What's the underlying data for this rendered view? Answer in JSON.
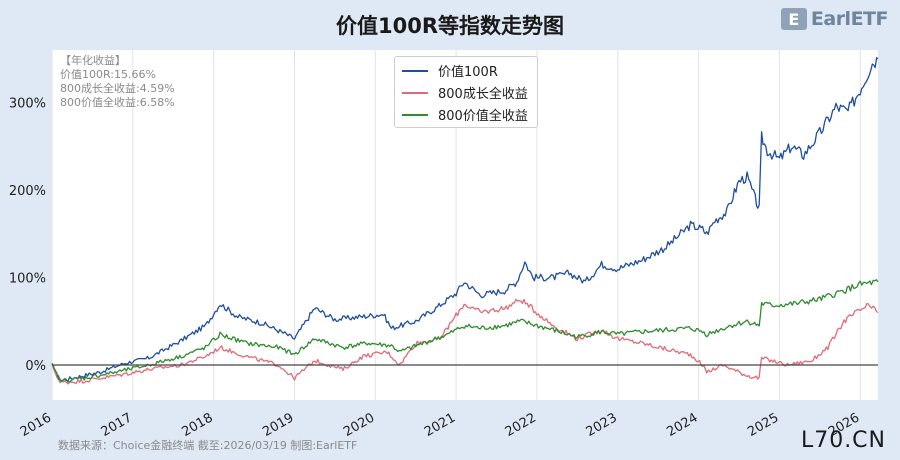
{
  "title": "价值100R等指数走势图",
  "logo": {
    "mark": "E",
    "text": "EarlETF"
  },
  "annualized": {
    "heading": "【年化收益】",
    "lines": [
      "价值100R:15.66%",
      "800成长全收益:4.59%",
      "800价值全收益:6.58%"
    ]
  },
  "source": "数据来源：Choice金融终端 截至:2026/03/19 制图:EarlETF",
  "watermark": "L70.CN",
  "colors": {
    "value100r": "#1f4e9c",
    "growth800": "#e06b78",
    "value800": "#2e8b2e",
    "zero_line": "#444444",
    "grid": "#e3e3e3"
  },
  "chart_data": {
    "type": "line",
    "title": "价值100R等指数走势图",
    "xlabel": "",
    "ylabel": "",
    "x_ticks": [
      "2016",
      "2017",
      "2018",
      "2019",
      "2020",
      "2021",
      "2022",
      "2023",
      "2024",
      "2025",
      "2026"
    ],
    "y_ticks": [
      "0%",
      "100%",
      "200%",
      "300%"
    ],
    "xlim": [
      2016.0,
      2026.22
    ],
    "ylim": [
      -40,
      360
    ],
    "grid": "vertical",
    "legend_position": "top-center",
    "series": [
      {
        "name": "价值100R",
        "color": "#1f4e9c",
        "points": [
          [
            2016.0,
            0
          ],
          [
            2016.1,
            -18
          ],
          [
            2016.3,
            -14
          ],
          [
            2016.6,
            -8
          ],
          [
            2016.9,
            2
          ],
          [
            2017.2,
            8
          ],
          [
            2017.6,
            28
          ],
          [
            2017.9,
            45
          ],
          [
            2018.08,
            70
          ],
          [
            2018.3,
            55
          ],
          [
            2018.6,
            48
          ],
          [
            2018.9,
            35
          ],
          [
            2019.0,
            30
          ],
          [
            2019.25,
            65
          ],
          [
            2019.5,
            52
          ],
          [
            2019.8,
            55
          ],
          [
            2020.1,
            58
          ],
          [
            2020.2,
            42
          ],
          [
            2020.5,
            50
          ],
          [
            2020.75,
            65
          ],
          [
            2021.0,
            82
          ],
          [
            2021.1,
            95
          ],
          [
            2021.3,
            80
          ],
          [
            2021.6,
            85
          ],
          [
            2021.75,
            95
          ],
          [
            2021.85,
            118
          ],
          [
            2021.95,
            100
          ],
          [
            2022.2,
            100
          ],
          [
            2022.4,
            105
          ],
          [
            2022.6,
            95
          ],
          [
            2022.8,
            115
          ],
          [
            2023.0,
            110
          ],
          [
            2023.3,
            120
          ],
          [
            2023.6,
            135
          ],
          [
            2023.9,
            160
          ],
          [
            2024.05,
            155
          ],
          [
            2024.1,
            150
          ],
          [
            2024.2,
            165
          ],
          [
            2024.35,
            175
          ],
          [
            2024.5,
            210
          ],
          [
            2024.6,
            215
          ],
          [
            2024.7,
            190
          ],
          [
            2024.75,
            178
          ],
          [
            2024.78,
            260
          ],
          [
            2024.85,
            245
          ],
          [
            2025.0,
            235
          ],
          [
            2025.15,
            250
          ],
          [
            2025.3,
            240
          ],
          [
            2025.5,
            265
          ],
          [
            2025.7,
            295
          ],
          [
            2025.85,
            290
          ],
          [
            2026.0,
            315
          ],
          [
            2026.15,
            345
          ],
          [
            2026.22,
            350
          ]
        ]
      },
      {
        "name": "800成长全收益",
        "color": "#e06b78",
        "points": [
          [
            2016.0,
            0
          ],
          [
            2016.1,
            -20
          ],
          [
            2016.4,
            -18
          ],
          [
            2016.8,
            -12
          ],
          [
            2017.2,
            -5
          ],
          [
            2017.6,
            0
          ],
          [
            2017.9,
            10
          ],
          [
            2018.08,
            20
          ],
          [
            2018.4,
            10
          ],
          [
            2018.8,
            0
          ],
          [
            2019.0,
            -15
          ],
          [
            2019.25,
            5
          ],
          [
            2019.6,
            -5
          ],
          [
            2019.85,
            10
          ],
          [
            2020.15,
            15
          ],
          [
            2020.3,
            0
          ],
          [
            2020.5,
            25
          ],
          [
            2020.8,
            30
          ],
          [
            2021.1,
            70
          ],
          [
            2021.3,
            60
          ],
          [
            2021.6,
            65
          ],
          [
            2021.8,
            75
          ],
          [
            2022.0,
            60
          ],
          [
            2022.2,
            45
          ],
          [
            2022.5,
            30
          ],
          [
            2022.8,
            40
          ],
          [
            2023.0,
            30
          ],
          [
            2023.3,
            25
          ],
          [
            2023.6,
            18
          ],
          [
            2023.9,
            12
          ],
          [
            2024.05,
            0
          ],
          [
            2024.1,
            -8
          ],
          [
            2024.3,
            0
          ],
          [
            2024.6,
            -12
          ],
          [
            2024.75,
            -15
          ],
          [
            2024.78,
            8
          ],
          [
            2024.9,
            5
          ],
          [
            2025.1,
            0
          ],
          [
            2025.4,
            5
          ],
          [
            2025.6,
            20
          ],
          [
            2025.8,
            50
          ],
          [
            2025.95,
            60
          ],
          [
            2026.1,
            68
          ],
          [
            2026.22,
            60
          ]
        ]
      },
      {
        "name": "800价值全收益",
        "color": "#2e8b2e",
        "points": [
          [
            2016.0,
            0
          ],
          [
            2016.1,
            -18
          ],
          [
            2016.4,
            -15
          ],
          [
            2016.8,
            -8
          ],
          [
            2017.2,
            0
          ],
          [
            2017.6,
            10
          ],
          [
            2017.9,
            20
          ],
          [
            2018.08,
            35
          ],
          [
            2018.4,
            25
          ],
          [
            2018.8,
            20
          ],
          [
            2019.0,
            12
          ],
          [
            2019.25,
            30
          ],
          [
            2019.6,
            20
          ],
          [
            2019.9,
            25
          ],
          [
            2020.2,
            22
          ],
          [
            2020.3,
            15
          ],
          [
            2020.6,
            25
          ],
          [
            2020.9,
            35
          ],
          [
            2021.1,
            45
          ],
          [
            2021.3,
            42
          ],
          [
            2021.6,
            45
          ],
          [
            2021.8,
            50
          ],
          [
            2022.0,
            45
          ],
          [
            2022.2,
            40
          ],
          [
            2022.5,
            32
          ],
          [
            2022.8,
            38
          ],
          [
            2023.0,
            35
          ],
          [
            2023.3,
            38
          ],
          [
            2023.6,
            40
          ],
          [
            2023.9,
            42
          ],
          [
            2024.05,
            38
          ],
          [
            2024.1,
            35
          ],
          [
            2024.4,
            45
          ],
          [
            2024.6,
            50
          ],
          [
            2024.75,
            45
          ],
          [
            2024.78,
            70
          ],
          [
            2024.9,
            68
          ],
          [
            2025.2,
            70
          ],
          [
            2025.5,
            75
          ],
          [
            2025.8,
            85
          ],
          [
            2026.0,
            92
          ],
          [
            2026.22,
            95
          ]
        ]
      }
    ]
  }
}
